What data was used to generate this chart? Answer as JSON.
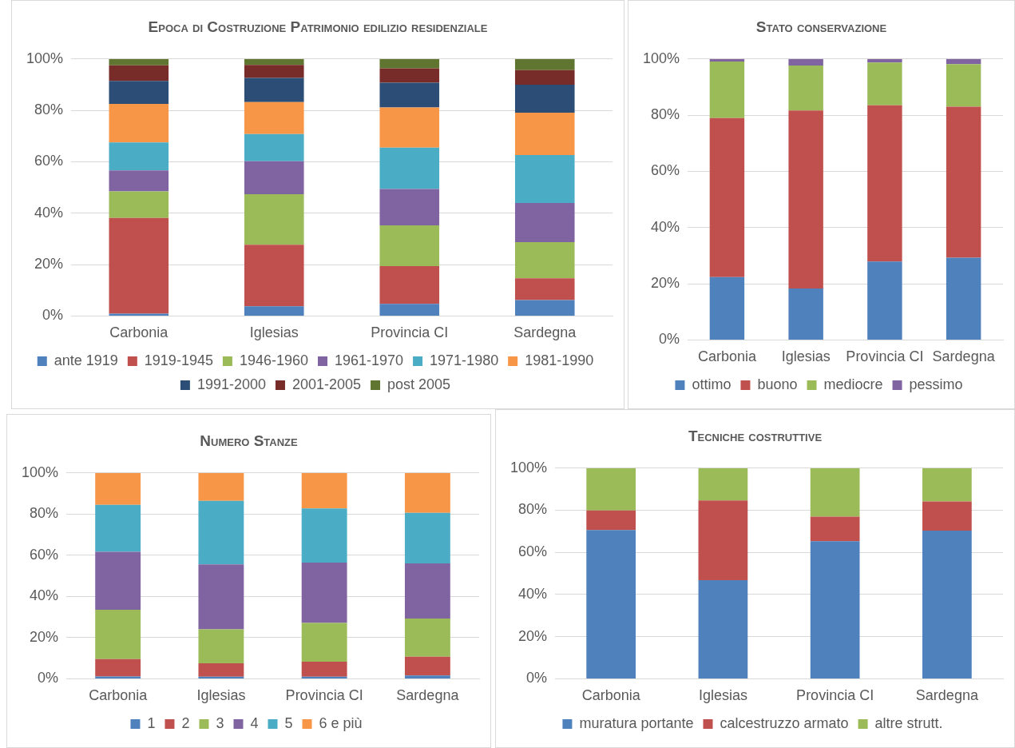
{
  "chart_data": [
    {
      "type": "bar",
      "stacked": true,
      "title": "Epoca di Costruzione Patrimonio edilizio residenziale",
      "categories": [
        "Carbonia",
        "Iglesias",
        "Provincia CI",
        "Sardegna"
      ],
      "ylim": [
        0,
        100
      ],
      "yticks": [
        {
          "value": 0,
          "label": "0%"
        },
        {
          "value": 20,
          "label": "20%"
        },
        {
          "value": 40,
          "label": "40%"
        },
        {
          "value": 60,
          "label": "60%"
        },
        {
          "value": 80,
          "label": "80%"
        },
        {
          "value": 100,
          "label": "100%"
        }
      ],
      "grid": "y",
      "legend": "bottom",
      "series": [
        {
          "name": "ante 1919",
          "color": "#4f81bd",
          "values": [
            0.9,
            3.8,
            4.7,
            6.2
          ]
        },
        {
          "name": "1919-1945",
          "color": "#c0504d",
          "values": [
            37.2,
            23.9,
            14.7,
            8.5
          ]
        },
        {
          "name": "1946-1960",
          "color": "#9bbb59",
          "values": [
            10.4,
            19.7,
            15.9,
            14
          ]
        },
        {
          "name": "1961-1970",
          "color": "#8064a2",
          "values": [
            8.1,
            12.8,
            14.1,
            15.3
          ]
        },
        {
          "name": "1971-1980",
          "color": "#4bacc6",
          "values": [
            10.9,
            10.6,
            16.1,
            18.6
          ]
        },
        {
          "name": "1981-1990",
          "color": "#f79646",
          "values": [
            15,
            12.4,
            15.6,
            16.5
          ]
        },
        {
          "name": "1991-2000",
          "color": "#2c4d75",
          "values": [
            9,
            9.4,
            9.7,
            10.9
          ]
        },
        {
          "name": "2001-2005",
          "color": "#772c2a",
          "values": [
            6,
            5.1,
            5.6,
            5.7
          ]
        },
        {
          "name": "post 2005",
          "color": "#5f7530",
          "values": [
            2.5,
            2.3,
            3.6,
            4.3
          ]
        }
      ]
    },
    {
      "type": "bar",
      "stacked": true,
      "title": "Stato conservazione",
      "categories": [
        "Carbonia",
        "Iglesias",
        "Provincia CI",
        "Sardegna"
      ],
      "ylim": [
        0,
        100
      ],
      "yticks": [
        {
          "value": 0,
          "label": "0%"
        },
        {
          "value": 20,
          "label": "20%"
        },
        {
          "value": 40,
          "label": "40%"
        },
        {
          "value": 60,
          "label": "60%"
        },
        {
          "value": 80,
          "label": "80%"
        },
        {
          "value": 100,
          "label": "100%"
        }
      ],
      "grid": "y",
      "legend": "bottom",
      "series": [
        {
          "name": "ottimo",
          "color": "#4f81bd",
          "values": [
            22.4,
            18.3,
            27.9,
            29.3
          ]
        },
        {
          "name": "buono",
          "color": "#c0504d",
          "values": [
            56.6,
            63.4,
            55.6,
            53.7
          ]
        },
        {
          "name": "mediocre",
          "color": "#9bbb59",
          "values": [
            20.1,
            16,
            15.2,
            15.2
          ]
        },
        {
          "name": "pessimo",
          "color": "#8064a2",
          "values": [
            0.9,
            2.3,
            1.3,
            1.8
          ]
        }
      ]
    },
    {
      "type": "bar",
      "stacked": true,
      "title": "Numero Stanze",
      "categories": [
        "Carbonia",
        "Iglesias",
        "Provincia CI",
        "Sardegna"
      ],
      "ylim": [
        0,
        100
      ],
      "yticks": [
        {
          "value": 0,
          "label": "0%"
        },
        {
          "value": 20,
          "label": "20%"
        },
        {
          "value": 40,
          "label": "40%"
        },
        {
          "value": 60,
          "label": "60%"
        },
        {
          "value": 80,
          "label": "80%"
        },
        {
          "value": 100,
          "label": "100%"
        }
      ],
      "grid": "y",
      "legend": "bottom",
      "series": [
        {
          "name": "1",
          "color": "#4f81bd",
          "values": [
            1.1,
            1,
            1,
            1.6
          ]
        },
        {
          "name": "2",
          "color": "#c0504d",
          "values": [
            8.5,
            6.5,
            7.3,
            9.1
          ]
        },
        {
          "name": "3",
          "color": "#9bbb59",
          "values": [
            23.9,
            16.5,
            18.8,
            18.6
          ]
        },
        {
          "name": "4",
          "color": "#8064a2",
          "values": [
            28.2,
            31.6,
            29.3,
            26.8
          ]
        },
        {
          "name": "5",
          "color": "#4bacc6",
          "values": [
            22.8,
            30.8,
            26.3,
            24.5
          ]
        },
        {
          "name": "6 e più",
          "color": "#f79646",
          "values": [
            15.5,
            13.6,
            17.3,
            19.4
          ]
        }
      ]
    },
    {
      "type": "bar",
      "stacked": true,
      "title": "Tecniche costruttive",
      "categories": [
        "Carbonia",
        "Iglesias",
        "Provincia CI",
        "Sardegna"
      ],
      "ylim": [
        0,
        100
      ],
      "yticks": [
        {
          "value": 0,
          "label": "0%"
        },
        {
          "value": 20,
          "label": "20%"
        },
        {
          "value": 40,
          "label": "40%"
        },
        {
          "value": 60,
          "label": "60%"
        },
        {
          "value": 80,
          "label": "80%"
        },
        {
          "value": 100,
          "label": "100%"
        }
      ],
      "grid": "y",
      "legend": "bottom",
      "series": [
        {
          "name": "muratura portante",
          "color": "#4f81bd",
          "values": [
            70.6,
            46.8,
            65.3,
            70.3
          ]
        },
        {
          "name": "calcestruzzo armato",
          "color": "#c0504d",
          "values": [
            9.3,
            37.9,
            11.7,
            13.9
          ]
        },
        {
          "name": "altre strutt.",
          "color": "#9bbb59",
          "values": [
            20.1,
            15.3,
            23,
            15.8
          ]
        }
      ]
    }
  ]
}
